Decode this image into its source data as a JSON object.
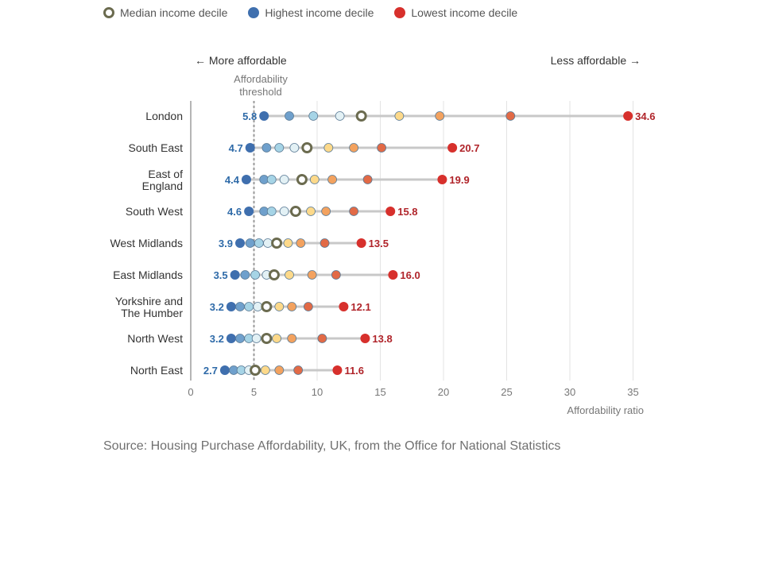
{
  "legend": {
    "median": {
      "label": "Median income decile",
      "color": "#ffffff",
      "stroke": "#6b6b4f"
    },
    "highest": {
      "label": "Highest income decile",
      "color": "#3f6fae"
    },
    "lowest": {
      "label": "Lowest income decile",
      "color": "#d7302c"
    }
  },
  "annotations": {
    "more_affordable": "← More affordable",
    "less_affordable": "Less affordable →",
    "threshold_line1": "Affordability",
    "threshold_line2": "threshold"
  },
  "source": "Source: Housing Purchase Affordability, UK, from the Office for National Statistics",
  "colors": {
    "decile_palette": [
      "#3f6fae",
      "#6fa0cc",
      "#a6d4e6",
      "#e3f1f5",
      "#ffffff",
      "#fdd98a",
      "#f3a25f",
      "#e26a46",
      "#d7302c"
    ],
    "highest_label": "#2e6aa8",
    "lowest_label": "#b0242a",
    "range_line": "#c8c8c8",
    "threshold": "#999999",
    "gridline": "#e3e3e3"
  },
  "chart_data": {
    "type": "scatter",
    "title": "",
    "xlabel": "Affordability ratio",
    "xlim": [
      0,
      36
    ],
    "xticks": [
      0,
      5,
      10,
      15,
      20,
      25,
      30,
      35
    ],
    "threshold": 5,
    "grid": true,
    "legend_position": "top",
    "regions": [
      {
        "name": "London",
        "label_lines": [
          "London"
        ],
        "values": [
          5.8,
          7.8,
          9.7,
          11.8,
          13.5,
          16.5,
          19.7,
          25.3,
          34.6
        ]
      },
      {
        "name": "South East",
        "label_lines": [
          "South East"
        ],
        "values": [
          4.7,
          6.0,
          7.0,
          8.2,
          9.2,
          10.9,
          12.9,
          15.1,
          20.7
        ]
      },
      {
        "name": "East of England",
        "label_lines": [
          "East of",
          "England"
        ],
        "values": [
          4.4,
          5.8,
          6.4,
          7.4,
          8.8,
          9.8,
          11.2,
          14.0,
          19.9
        ]
      },
      {
        "name": "South West",
        "label_lines": [
          "South West"
        ],
        "values": [
          4.6,
          5.8,
          6.4,
          7.4,
          8.3,
          9.5,
          10.7,
          12.9,
          15.8
        ]
      },
      {
        "name": "West Midlands",
        "label_lines": [
          "West Midlands"
        ],
        "values": [
          3.9,
          4.7,
          5.4,
          6.1,
          6.8,
          7.7,
          8.7,
          10.6,
          13.5
        ]
      },
      {
        "name": "East Midlands",
        "label_lines": [
          "East Midlands"
        ],
        "values": [
          3.5,
          4.3,
          5.1,
          6.0,
          6.6,
          7.8,
          9.6,
          11.5,
          16.0
        ]
      },
      {
        "name": "Yorkshire and The Humber",
        "label_lines": [
          "Yorkshire and",
          "The Humber"
        ],
        "values": [
          3.2,
          3.9,
          4.6,
          5.3,
          6.0,
          7.0,
          8.0,
          9.3,
          12.1
        ]
      },
      {
        "name": "North West",
        "label_lines": [
          "North West"
        ],
        "values": [
          3.2,
          3.9,
          4.6,
          5.2,
          6.0,
          6.8,
          8.0,
          10.4,
          13.8
        ]
      },
      {
        "name": "North East",
        "label_lines": [
          "North East"
        ],
        "values": [
          2.7,
          3.4,
          4.0,
          4.6,
          5.1,
          5.9,
          7.0,
          8.5,
          11.6
        ]
      }
    ]
  }
}
